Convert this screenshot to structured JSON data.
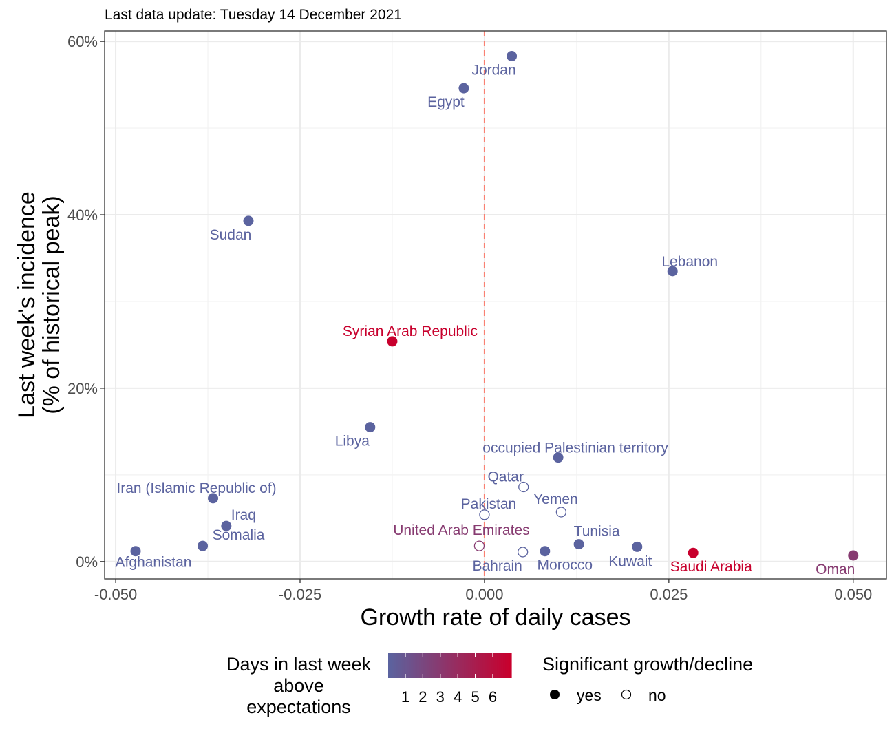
{
  "chart_data": {
    "type": "scatter",
    "subtitle": "Last data update: Tuesday 14 December 2021",
    "xlabel": "Growth rate of daily cases",
    "ylabel_line1": "Last week's incidence",
    "ylabel_line2": "(% of historical peak)",
    "xlim": [
      -0.0515,
      0.0545
    ],
    "ylim": [
      -2.0,
      61.2
    ],
    "x_ticks": [
      {
        "value": -0.05,
        "label": "-0.050"
      },
      {
        "value": -0.025,
        "label": "-0.025"
      },
      {
        "value": 0.0,
        "label": "0.000"
      },
      {
        "value": 0.025,
        "label": "0.025"
      },
      {
        "value": 0.05,
        "label": "0.050"
      }
    ],
    "y_ticks": [
      {
        "value": 0,
        "label": "0%"
      },
      {
        "value": 20,
        "label": "20%"
      },
      {
        "value": 40,
        "label": "40%"
      },
      {
        "value": 60,
        "label": "60%"
      }
    ],
    "reference_line_x": 0.0,
    "reference_line_color": "#fa8072",
    "grid": true,
    "color_scale": {
      "low": "#5b639f",
      "high": "#c8002d"
    },
    "points": [
      {
        "name": "Jordan",
        "x": 0.0037,
        "y": 58.3,
        "days": 1,
        "significant": true
      },
      {
        "name": "Egypt",
        "x": -0.0028,
        "y": 54.6,
        "days": 1,
        "significant": true
      },
      {
        "name": "Sudan",
        "x": -0.032,
        "y": 39.3,
        "days": 1,
        "significant": true
      },
      {
        "name": "Lebanon",
        "x": 0.0255,
        "y": 33.5,
        "days": 1,
        "significant": true
      },
      {
        "name": "Syrian Arab Republic",
        "x": -0.0125,
        "y": 25.4,
        "days": 6,
        "significant": true
      },
      {
        "name": "Libya",
        "x": -0.0155,
        "y": 15.5,
        "days": 1,
        "significant": true
      },
      {
        "name": "occupied Palestinian territory",
        "x": 0.01,
        "y": 12.0,
        "days": 1,
        "significant": true
      },
      {
        "name": "Qatar",
        "x": 0.0053,
        "y": 8.6,
        "days": 1,
        "significant": false
      },
      {
        "name": "Iran (Islamic Republic of)",
        "x": -0.0368,
        "y": 7.3,
        "days": 1,
        "significant": true
      },
      {
        "name": "Yemen",
        "x": 0.0104,
        "y": 5.7,
        "days": 1,
        "significant": false
      },
      {
        "name": "Pakistan",
        "x": 0.0,
        "y": 5.4,
        "days": 1,
        "significant": false
      },
      {
        "name": "Iraq",
        "x": -0.035,
        "y": 4.1,
        "days": 1,
        "significant": true
      },
      {
        "name": "United Arab Emirates",
        "x": -0.0007,
        "y": 1.8,
        "days": 3,
        "significant": false
      },
      {
        "name": "Tunisia",
        "x": 0.0128,
        "y": 2.0,
        "days": 1,
        "significant": true
      },
      {
        "name": "Somalia",
        "x": -0.0382,
        "y": 1.8,
        "days": 1,
        "significant": true
      },
      {
        "name": "Kuwait",
        "x": 0.0207,
        "y": 1.7,
        "days": 1,
        "significant": true
      },
      {
        "name": "Afghanistan",
        "x": -0.0473,
        "y": 1.2,
        "days": 1,
        "significant": true
      },
      {
        "name": "Morocco",
        "x": 0.0082,
        "y": 1.2,
        "days": 1,
        "significant": true
      },
      {
        "name": "Bahrain",
        "x": 0.0052,
        "y": 1.1,
        "days": 1,
        "significant": false
      },
      {
        "name": "Saudi Arabia",
        "x": 0.0283,
        "y": 1.0,
        "days": 6,
        "significant": true
      },
      {
        "name": "Oman",
        "x": 0.05,
        "y": 0.7,
        "days": 3,
        "significant": true
      }
    ],
    "legend": {
      "color_title_lines": [
        "Days in last week",
        "above",
        "expectations"
      ],
      "color_ticks": [
        "1",
        "2",
        "3",
        "4",
        "5",
        "6"
      ],
      "shape_title": "Significant growth/decline",
      "shape_items": [
        {
          "label": "yes",
          "filled": true
        },
        {
          "label": "no",
          "filled": false
        }
      ],
      "placement": "bottom"
    }
  }
}
